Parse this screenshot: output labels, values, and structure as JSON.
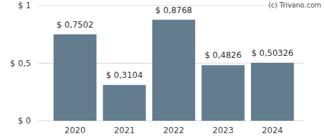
{
  "chart_data": {
    "type": "bar",
    "annotations": [
      "(c) Trivano.com"
    ],
    "categories": [
      "2020",
      "2021",
      "2022",
      "2023",
      "2024"
    ],
    "values": [
      0.7502,
      0.3104,
      0.8768,
      0.4826,
      0.50326
    ],
    "value_labels": [
      "$ 0,7502",
      "$ 0,3104",
      "$ 0,8768",
      "$ 0,4826",
      "$ 0,50326"
    ],
    "data_labels": true,
    "color": "#647d8e",
    "ylim": [
      0,
      1
    ],
    "yticks": [
      {
        "value": 0,
        "label": "$ 0"
      },
      {
        "value": 0.5,
        "label": "$ 0,5"
      },
      {
        "value": 1,
        "label": "$ 1"
      }
    ],
    "grid": true
  }
}
